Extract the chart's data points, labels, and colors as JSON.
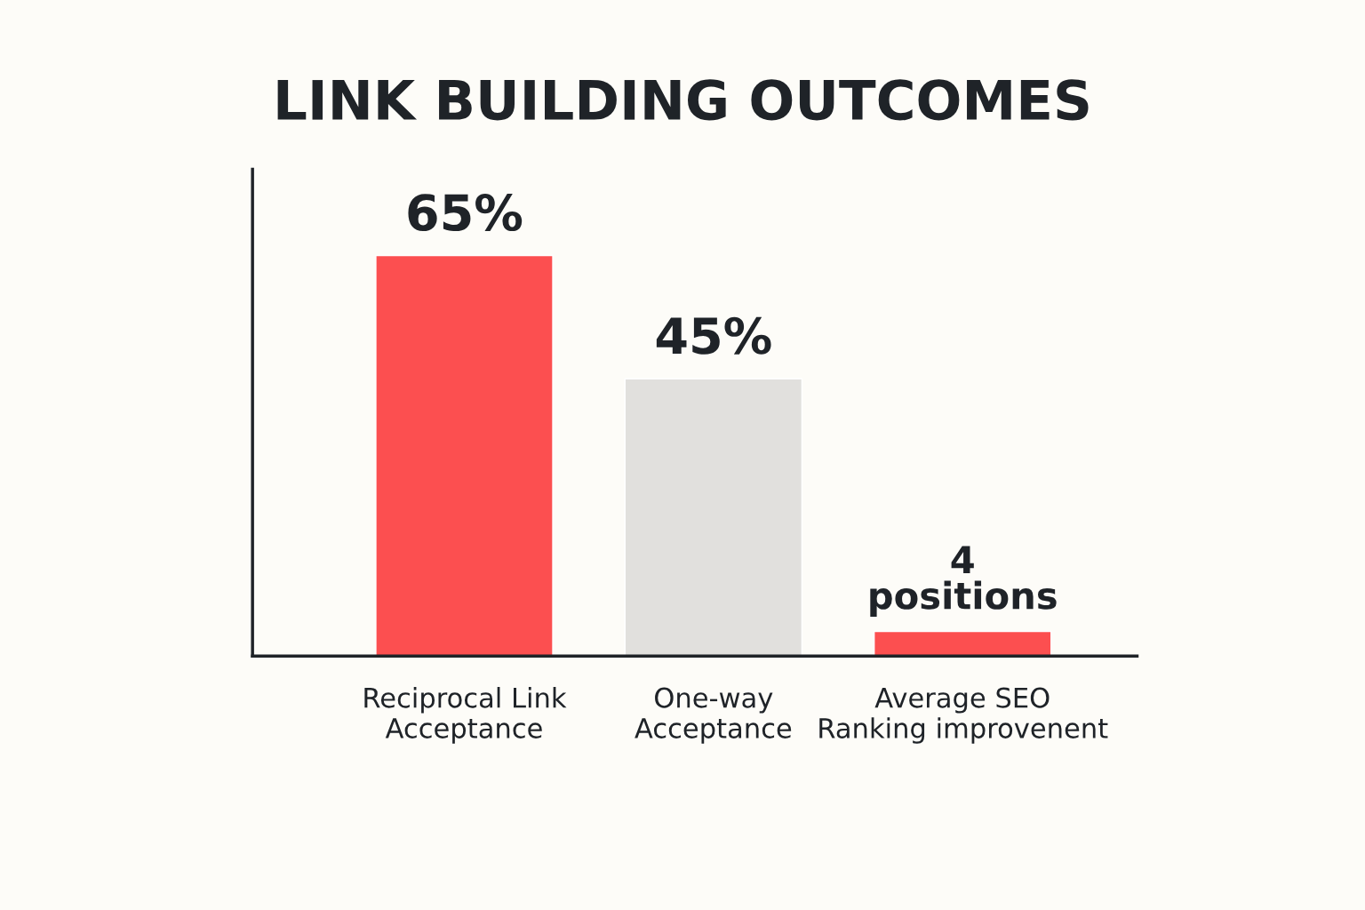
{
  "chart_data": {
    "type": "bar",
    "title": "LINK BUILDING OUTCOMES",
    "categories": [
      "Reciprocal Link\nAcceptance",
      "One-way\nAcceptance",
      "Average SEO\nRanking improvenent"
    ],
    "values": [
      65,
      45,
      4
    ],
    "colors": [
      "#fc4f50",
      "#e1e0dd",
      "#fc4f50"
    ],
    "value_labels": [
      "65%",
      "45%",
      "4\npositions"
    ],
    "ylim": [
      0,
      79
    ],
    "grid": false,
    "legend": false
  }
}
